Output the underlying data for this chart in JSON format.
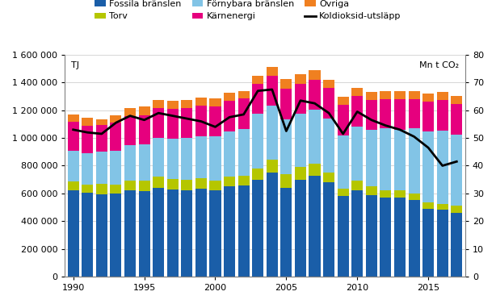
{
  "years": [
    1990,
    1991,
    1992,
    1993,
    1994,
    1995,
    1996,
    1997,
    1998,
    1999,
    2000,
    2001,
    2002,
    2003,
    2004,
    2005,
    2006,
    2007,
    2008,
    2009,
    2010,
    2011,
    2012,
    2013,
    2014,
    2015,
    2016,
    2017
  ],
  "fossila": [
    620000,
    605000,
    595000,
    600000,
    620000,
    615000,
    640000,
    630000,
    625000,
    635000,
    625000,
    650000,
    660000,
    700000,
    750000,
    640000,
    700000,
    730000,
    680000,
    580000,
    620000,
    590000,
    570000,
    570000,
    550000,
    490000,
    480000,
    460000
  ],
  "torv": [
    65000,
    60000,
    75000,
    65000,
    75000,
    75000,
    80000,
    75000,
    75000,
    75000,
    70000,
    70000,
    70000,
    80000,
    95000,
    100000,
    90000,
    85000,
    70000,
    55000,
    75000,
    60000,
    55000,
    55000,
    50000,
    45000,
    45000,
    50000
  ],
  "fornybara": [
    220000,
    225000,
    230000,
    240000,
    255000,
    265000,
    280000,
    290000,
    300000,
    305000,
    315000,
    325000,
    335000,
    395000,
    390000,
    395000,
    385000,
    390000,
    390000,
    385000,
    390000,
    410000,
    445000,
    435000,
    470000,
    510000,
    530000,
    515000
  ],
  "karnenergi": [
    210000,
    200000,
    195000,
    205000,
    210000,
    210000,
    215000,
    215000,
    215000,
    220000,
    220000,
    225000,
    218000,
    218000,
    215000,
    222000,
    218000,
    215000,
    220000,
    220000,
    220000,
    215000,
    212000,
    218000,
    212000,
    218000,
    220000,
    218000
  ],
  "ovriga": [
    55000,
    55000,
    40000,
    55000,
    58000,
    60000,
    57000,
    57000,
    57000,
    57000,
    57000,
    57000,
    57000,
    57000,
    65000,
    70000,
    68000,
    68000,
    62000,
    58000,
    58000,
    58000,
    58000,
    58000,
    58000,
    58000,
    60000,
    63000
  ],
  "co2": [
    53.0,
    52.0,
    51.5,
    55.5,
    58.0,
    56.5,
    59.0,
    58.0,
    57.0,
    56.0,
    54.0,
    57.5,
    58.5,
    67.0,
    67.5,
    52.5,
    63.5,
    62.5,
    59.0,
    51.5,
    59.5,
    56.5,
    54.5,
    53.0,
    50.5,
    46.5,
    40.0,
    41.5
  ],
  "fossila_color": "#1a5ea8",
  "torv_color": "#b5c600",
  "fornybara_color": "#82c4e6",
  "karnenergi_color": "#e6007e",
  "ovriga_color": "#f08020",
  "co2_color": "#000000",
  "background_color": "#ffffff",
  "ylabel_left": "TJ",
  "ylabel_right": "Mn t CO₂",
  "ylim_left": [
    0,
    1600000
  ],
  "ylim_right": [
    0,
    80
  ],
  "legend_labels": [
    "Fossila bränslen",
    "Torv",
    "Förnybara bränslen",
    "Kärnenergi",
    "Övriga",
    "Koldioksid-utsläpp"
  ],
  "legend_order": [
    0,
    1,
    2,
    3,
    4,
    5
  ]
}
